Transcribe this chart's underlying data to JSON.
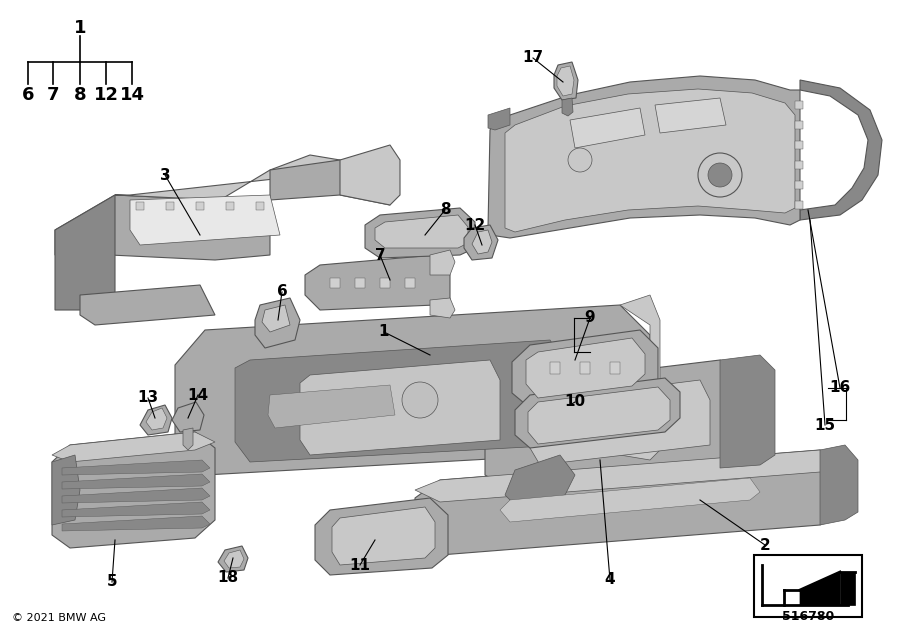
{
  "background_color": "#ffffff",
  "diagram_number": "516780",
  "copyright": "© 2021 BMW AG",
  "parts_tree_root": "1",
  "parts_tree_children": [
    "6",
    "7",
    "8",
    "12",
    "14"
  ],
  "gray_light": "#c8c8c8",
  "gray_mid": "#aaaaaa",
  "gray_dark": "#888888",
  "gray_edge": "#555555",
  "gray_very_dark": "#666666",
  "label_fontsize": 11,
  "copyright_fontsize": 8,
  "diagram_num_fontsize": 9
}
